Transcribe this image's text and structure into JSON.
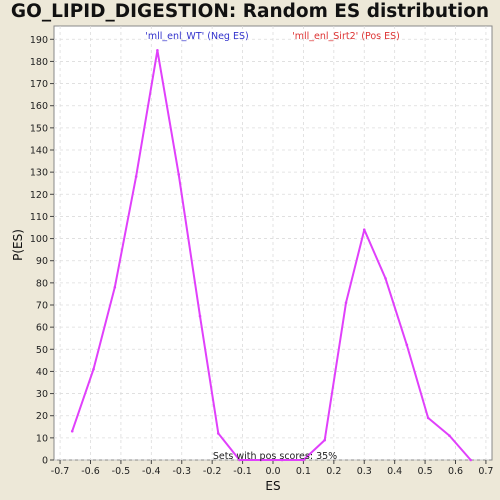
{
  "chart_data": {
    "type": "line",
    "title": "GO_LIPID_DIGESTION: Random ES distribution",
    "xlabel": "ES",
    "ylabel": "P(ES)",
    "xlim": [
      -0.72,
      0.72
    ],
    "ylim": [
      0,
      196
    ],
    "x_ticks": [
      -0.7,
      -0.6,
      -0.5,
      -0.4,
      -0.3,
      -0.2,
      -0.1,
      0,
      0.1,
      0.2,
      0.3,
      0.4,
      0.5,
      0.6,
      0.7
    ],
    "x_tick_labels": [
      "-0.7",
      "-0.6",
      "-0.5",
      "-0.4",
      "-0.3",
      "-0.2",
      "-0.1",
      "0.0",
      "0.1",
      "0.2",
      "0.3",
      "0.4",
      "0.5",
      "0.6",
      "0.7"
    ],
    "y_ticks": [
      0,
      10,
      20,
      30,
      40,
      50,
      60,
      70,
      80,
      90,
      100,
      110,
      120,
      130,
      140,
      150,
      160,
      170,
      180,
      190
    ],
    "grid": true,
    "series": [
      {
        "name": "",
        "color": "#e040fb",
        "x": [
          -0.66,
          -0.59,
          -0.52,
          -0.45,
          -0.38,
          -0.31,
          -0.24,
          -0.18,
          -0.11,
          -0.04,
          0.03,
          0.1,
          0.17,
          0.24,
          0.3,
          0.37,
          0.44,
          0.51,
          0.58,
          0.65
        ],
        "y": [
          13,
          41,
          78,
          128,
          185,
          129,
          65,
          12,
          0,
          0,
          0,
          0,
          9,
          71,
          104,
          82,
          52,
          19,
          11,
          0
        ]
      }
    ],
    "legend": [
      {
        "label": "'mll_enl_WT' (Neg ES)",
        "color": "#3333cc"
      },
      {
        "label": "'mll_enl_Sirt2' (Pos ES)",
        "color": "#dd3333"
      }
    ],
    "annotation": "Sets with pos scores: 35%"
  }
}
